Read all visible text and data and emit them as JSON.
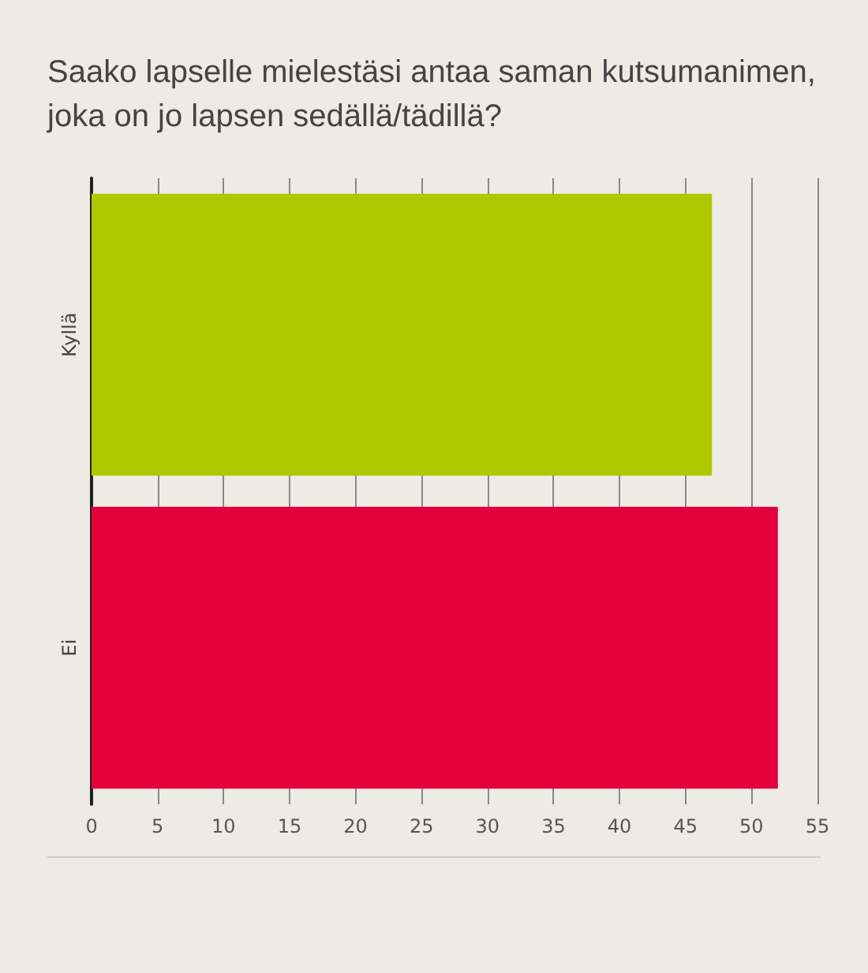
{
  "chart_data": {
    "type": "bar",
    "orientation": "horizontal",
    "title": "Saako lapselle mielestäsi antaa saman kutsumanimen, joka on jo lapsen sedällä/tädillä?",
    "categories": [
      "Kyllä",
      "Ei"
    ],
    "values": [
      47,
      52
    ],
    "colors": [
      "#b0c800",
      "#e4003a"
    ],
    "xlim": [
      0,
      55
    ],
    "xticks": [
      0,
      5,
      10,
      15,
      20,
      25,
      30,
      35,
      40,
      45,
      50,
      55
    ],
    "grid": "x"
  }
}
